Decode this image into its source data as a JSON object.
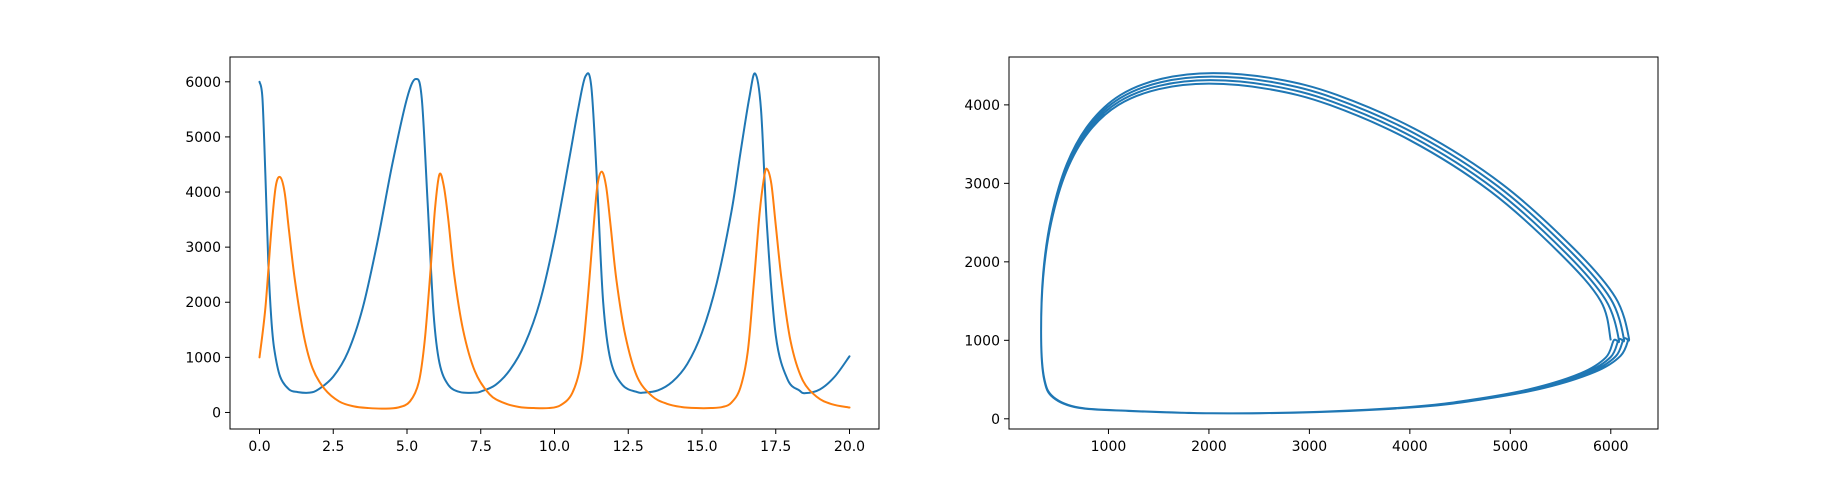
{
  "chart_data": [
    {
      "type": "line",
      "title": "",
      "xlabel": "",
      "ylabel": "",
      "xlim": [
        -1.0,
        21.0
      ],
      "ylim": [
        -300,
        6450
      ],
      "xticks": [
        0.0,
        2.5,
        5.0,
        7.5,
        10.0,
        12.5,
        15.0,
        17.5,
        20.0
      ],
      "xtick_labels": [
        "0.0",
        "2.5",
        "5.0",
        "7.5",
        "10.0",
        "12.5",
        "15.0",
        "17.5",
        "20.0"
      ],
      "yticks": [
        0,
        1000,
        2000,
        3000,
        4000,
        5000,
        6000
      ],
      "ytick_labels": [
        "0",
        "1000",
        "2000",
        "3000",
        "4000",
        "5000",
        "6000"
      ],
      "grid": false,
      "series": [
        {
          "color": "#1f77b4",
          "x": [
            0.0,
            0.1,
            0.2,
            0.3,
            0.4,
            0.5,
            0.7,
            1.0,
            1.3,
            1.7,
            2.0,
            2.5,
            3.0,
            3.5,
            4.0,
            4.5,
            5.0,
            5.3,
            5.5,
            5.7,
            5.9,
            6.1,
            6.4,
            6.8,
            7.3,
            7.5,
            8.0,
            8.5,
            9.0,
            9.5,
            10.0,
            10.5,
            10.8,
            11.05,
            11.25,
            11.45,
            11.65,
            11.9,
            12.3,
            12.8,
            13.0,
            13.5,
            14.0,
            14.5,
            15.0,
            15.5,
            16.0,
            16.3,
            16.6,
            16.8,
            17.0,
            17.2,
            17.5,
            17.9,
            18.3,
            18.5,
            19.0,
            19.5,
            20.0
          ],
          "y": [
            6000,
            5700,
            4300,
            2700,
            1700,
            1150,
            650,
            420,
            370,
            360,
            420,
            650,
            1100,
            1900,
            3100,
            4500,
            5700,
            6050,
            5700,
            3800,
            1800,
            900,
            500,
            370,
            360,
            380,
            500,
            780,
            1250,
            2000,
            3150,
            4600,
            5500,
            6100,
            5900,
            4100,
            2000,
            950,
            500,
            370,
            360,
            400,
            560,
            880,
            1450,
            2350,
            3650,
            4700,
            5700,
            6150,
            5500,
            3400,
            1400,
            600,
            400,
            350,
            420,
            650,
            1020
          ]
        },
        {
          "color": "#ff7f0e",
          "x": [
            0.0,
            0.2,
            0.4,
            0.55,
            0.7,
            0.85,
            1.0,
            1.2,
            1.5,
            1.8,
            2.2,
            2.7,
            3.2,
            3.7,
            4.2,
            4.7,
            5.1,
            5.4,
            5.6,
            5.8,
            5.95,
            6.1,
            6.25,
            6.4,
            6.6,
            6.9,
            7.3,
            7.8,
            8.3,
            8.8,
            9.3,
            9.8,
            10.2,
            10.6,
            10.9,
            11.1,
            11.3,
            11.45,
            11.6,
            11.75,
            11.9,
            12.1,
            12.4,
            12.8,
            13.3,
            13.8,
            14.3,
            14.8,
            15.3,
            15.7,
            16.0,
            16.3,
            16.55,
            16.75,
            16.95,
            17.1,
            17.2,
            17.35,
            17.5,
            17.7,
            18.0,
            18.4,
            18.9,
            19.4,
            20.0
          ],
          "y": [
            1000,
            1900,
            3300,
            4100,
            4270,
            4000,
            3300,
            2400,
            1400,
            800,
            430,
            200,
            110,
            80,
            70,
            90,
            200,
            550,
            1300,
            2600,
            3700,
            4320,
            4100,
            3500,
            2500,
            1500,
            750,
            330,
            170,
            100,
            80,
            80,
            130,
            350,
            900,
            1900,
            3200,
            4100,
            4370,
            4100,
            3400,
            2400,
            1400,
            650,
            300,
            160,
            100,
            80,
            80,
            100,
            180,
            450,
            1100,
            2300,
            3600,
            4250,
            4420,
            4150,
            3400,
            2400,
            1300,
            600,
            280,
            150,
            90
          ]
        }
      ]
    },
    {
      "type": "line",
      "title": "",
      "xlabel": "",
      "ylabel": "",
      "xlim": [
        10,
        6470
      ],
      "ylim": [
        -130,
        4610
      ],
      "xticks": [
        1000,
        2000,
        3000,
        4000,
        5000,
        6000
      ],
      "xtick_labels": [
        "1000",
        "2000",
        "3000",
        "4000",
        "5000",
        "6000"
      ],
      "yticks": [
        0,
        1000,
        2000,
        3000,
        4000
      ],
      "ytick_labels": [
        "0",
        "1000",
        "2000",
        "3000",
        "4000"
      ],
      "grid": false,
      "series": [
        {
          "color": "#1f77b4",
          "loops": 4,
          "start": [
            6000,
            1000
          ],
          "x_min": 330,
          "x_max_first": 6030,
          "x_max_growth": 50,
          "y_max_first": 4270,
          "y_max_growth": 45,
          "y_min": 70
        }
      ]
    }
  ]
}
